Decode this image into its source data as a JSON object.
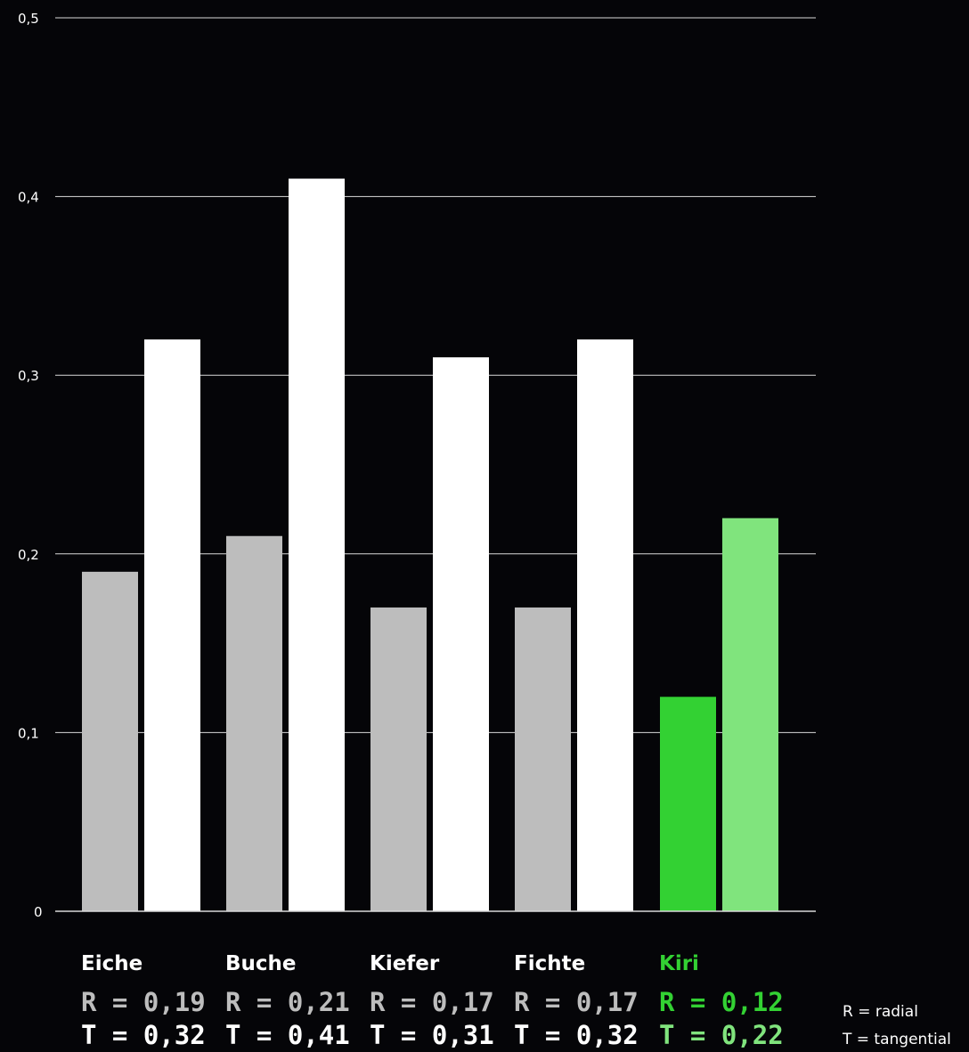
{
  "chart_data": {
    "type": "bar",
    "categories": [
      "Eiche",
      "Buche",
      "Kiefer",
      "Fichte",
      "Kiri"
    ],
    "series": [
      {
        "values": [
          0.19,
          0.21,
          0.17,
          0.17,
          0.12
        ]
      },
      {
        "values": [
          0.32,
          0.41,
          0.31,
          0.32,
          0.22
        ]
      }
    ],
    "category_labels": [
      {
        "name": "Eiche",
        "r_text": "R = 0,19",
        "t_text": "T = 0,32"
      },
      {
        "name": "Buche",
        "r_text": "R = 0,21",
        "t_text": "T = 0,41"
      },
      {
        "name": "Kiefer",
        "r_text": "R = 0,17",
        "t_text": "T = 0,31"
      },
      {
        "name": "Fichte",
        "r_text": "R = 0,17",
        "t_text": "T = 0,32"
      },
      {
        "name": "Kiri",
        "r_text": "R = 0,12",
        "t_text": "T = 0,22"
      }
    ],
    "yticks": [
      0,
      0.1,
      0.2,
      0.3,
      0.4,
      0.5
    ],
    "ytick_labels": [
      "0",
      "0,1",
      "0,2",
      "0,3",
      "0,4",
      "0,5"
    ],
    "ylim": [
      0,
      0.5
    ],
    "grid": true,
    "legend": [
      "R = radial",
      "T = tangential"
    ],
    "legend_position": "bottom-right",
    "highlight_category": "Kiri",
    "colors": {
      "background": "#050508",
      "r_bar": "#bdbdbd",
      "t_bar": "#ffffff",
      "highlight_r_bar": "#33d133",
      "highlight_t_bar": "#80e47d",
      "highlight_text": "#33d133",
      "highlight_t_text": "#80e47d",
      "r_text": "#bdbdbd",
      "t_text": "#ffffff",
      "grid": "#d9d9d9"
    }
  }
}
